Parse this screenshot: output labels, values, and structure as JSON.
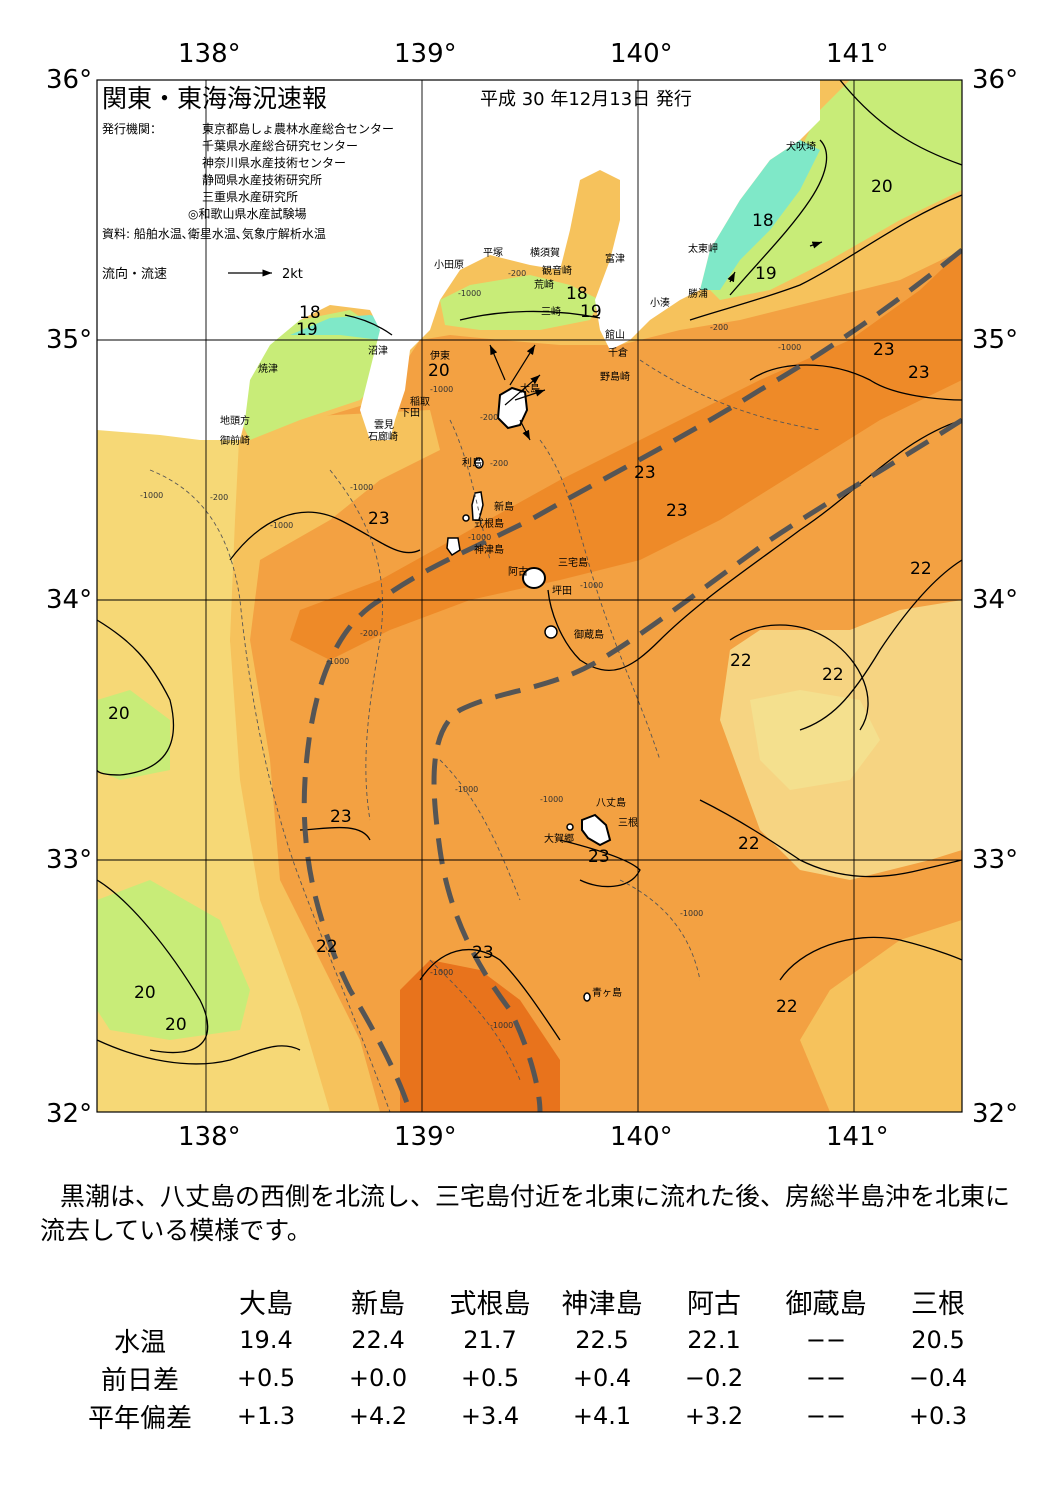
{
  "header": {
    "title": "関東・東海海況速報",
    "issue_date": "平成 30 年12月13日 発行",
    "issuer_label": "発行機関：",
    "issuers": [
      "東京都島しょ農林水産総合センター",
      "千葉県水産総合研究センター",
      "神奈川県水産技術センター",
      "静岡県水産技術研究所",
      "三重県水産研究所",
      "◎和歌山県水産試験場"
    ],
    "sources": "資料: 船舶水温､衛星水温､気象庁解析水温",
    "flow_legend_label": "流向・流速",
    "flow_legend_scale": "2kt"
  },
  "map": {
    "lon_ticks": [
      "138°",
      "139°",
      "140°",
      "141°"
    ],
    "lat_ticks": [
      "36°",
      "35°",
      "34°",
      "33°",
      "32°"
    ],
    "isotherm_labels": [
      "20",
      "18",
      "19",
      "18",
      "19",
      "18",
      "19",
      "20",
      "23",
      "23",
      "23",
      "23",
      "23",
      "22",
      "22",
      "22",
      "20",
      "23",
      "23",
      "22",
      "22",
      "23",
      "20",
      "20",
      "22"
    ],
    "depth_labels": [
      "-1000",
      "-200",
      "-1000",
      "-200",
      "-1000",
      "-1000",
      "-200",
      "-1000",
      "-1000",
      "-200",
      "-1000",
      "-1000",
      "-1000",
      "-1000",
      "-1000",
      "-1000",
      "-1000",
      "-200",
      "-200",
      "-1000"
    ],
    "place_names": [
      "犬吠埼",
      "太東岬",
      "勝浦",
      "小湊",
      "小田原",
      "平塚",
      "横須賀",
      "観音崎",
      "荒崎",
      "三崎",
      "富津",
      "館山",
      "千倉",
      "野島崎",
      "沼津",
      "焼津",
      "伊東",
      "稲取",
      "下田",
      "雲見",
      "石廊崎",
      "地頭方",
      "御前崎",
      "大島",
      "利島",
      "新島",
      "式根島",
      "神津島",
      "三宅島",
      "阿古",
      "坪田",
      "御蔵島",
      "八丈島",
      "三根",
      "大賀郷",
      "青ヶ島"
    ],
    "colors": {
      "cold": "#7fe8c8",
      "cool": "#c8ec78",
      "mild": "#eef090",
      "warm": "#f6c25c",
      "warmer": "#f3a142",
      "hot": "#ee8a28",
      "kuroshio_axis": "#555555"
    }
  },
  "summary": "黒潮は、八丈島の西側を北流し、三宅島付近を北東に流れた後、房総半島沖を北東に流去している模様です。",
  "stats": {
    "columns": [
      "大島",
      "新島",
      "式根島",
      "神津島",
      "阿古",
      "御蔵島",
      "三根"
    ],
    "rows": [
      {
        "label": "水温",
        "values": [
          "19.4",
          "22.4",
          "21.7",
          "22.5",
          "22.1",
          "−−",
          "20.5"
        ]
      },
      {
        "label": "前日差",
        "values": [
          "+0.5",
          "+0.0",
          "+0.5",
          "+0.4",
          "−0.2",
          "−−",
          "−0.4"
        ]
      },
      {
        "label": "平年偏差",
        "values": [
          "+1.3",
          "+4.2",
          "+3.4",
          "+4.1",
          "+3.2",
          "−−",
          "+0.3"
        ]
      }
    ]
  }
}
